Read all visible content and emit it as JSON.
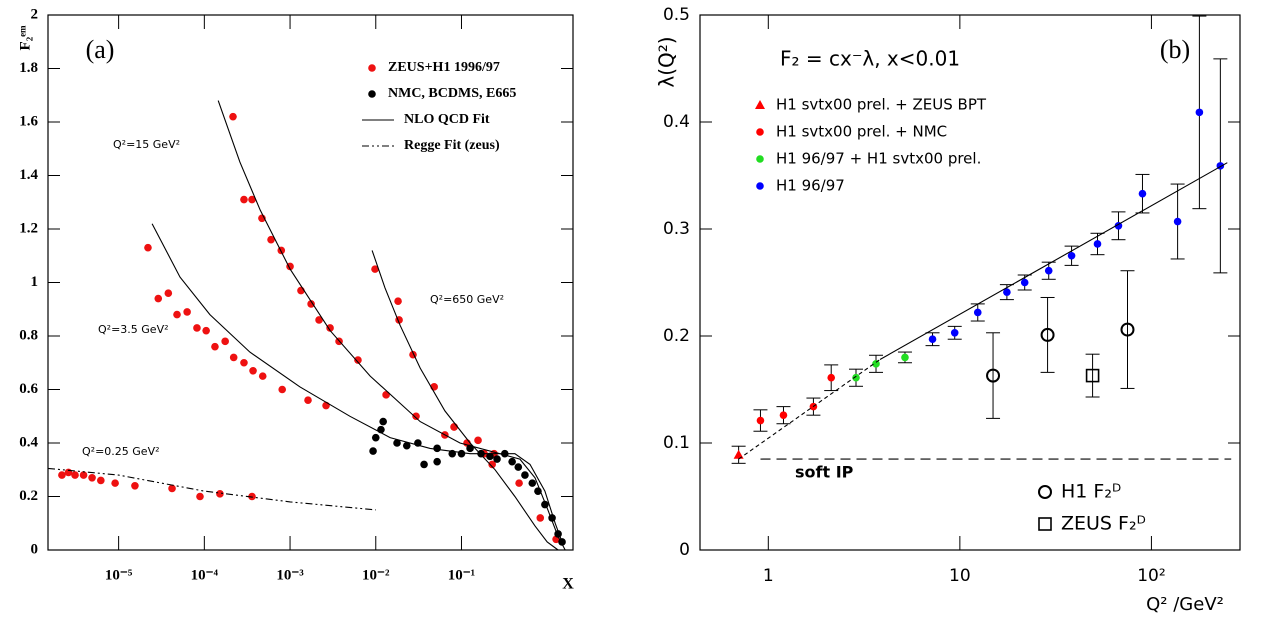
{
  "chart_data": [
    {
      "type": "scatter",
      "title": "(a)",
      "x_label": "X",
      "y_label": "F₂ᵉᵐ",
      "xscale": "log",
      "xlim": [
        1.5e-06,
        2
      ],
      "ylim": [
        0,
        2
      ],
      "xticks": [
        {
          "value": 1e-05,
          "label": "10⁻⁵"
        },
        {
          "value": 0.0001,
          "label": "10⁻⁴"
        },
        {
          "value": 0.001,
          "label": "10⁻³"
        },
        {
          "value": 0.01,
          "label": "10⁻²"
        },
        {
          "value": 0.1,
          "label": "10⁻¹"
        }
      ],
      "yticks": [
        0,
        0.2,
        0.4,
        0.6,
        0.8,
        1,
        1.2,
        1.4,
        1.6,
        1.8,
        2
      ],
      "annotations": [
        "Q²=15 GeV²",
        "Q²=3.5 GeV²",
        "Q²=650 GeV²",
        "Q²=0.25 GeV²"
      ],
      "series": [
        {
          "name": "ZEUS+H1 1996/97",
          "color": "#ee1111",
          "marker": "circle",
          "x": [
            0.000216,
            0.00029,
            0.00036,
            0.00047,
            0.0006,
            0.00079,
            0.001,
            0.00134,
            0.00176,
            0.00218,
            0.00293,
            0.00373,
            0.0062,
            0.0132,
            0.0295,
            0.064,
            0.082,
            0.156,
            0.24,
            2.2e-05,
            2.9e-05,
            3.8e-05,
            4.8e-05,
            6.3e-05,
            8.2e-05,
            0.000105,
            0.000133,
            0.000175,
            0.00022,
            0.00029,
            0.00037,
            0.00048,
            0.00081,
            0.00162,
            0.00263,
            0.0098,
            0.0182,
            0.0187,
            0.0272,
            0.048,
            0.082,
            0.116,
            0.184,
            0.228,
            0.47,
            0.83,
            1.27,
            2.18e-06,
            2.6e-06,
            3.1e-06,
            3.9e-06,
            4.9e-06,
            6.2e-06,
            9.1e-06,
            1.55e-05,
            4.2e-05,
            8.9e-05,
            0.000152,
            0.00036
          ],
          "values": [
            1.62,
            1.31,
            1.31,
            1.24,
            1.16,
            1.12,
            1.06,
            0.97,
            0.92,
            0.86,
            0.83,
            0.78,
            0.71,
            0.58,
            0.5,
            0.43,
            0.46,
            0.41,
            0.36,
            1.13,
            0.94,
            0.96,
            0.88,
            0.89,
            0.83,
            0.82,
            0.76,
            0.78,
            0.72,
            0.7,
            0.67,
            0.65,
            0.6,
            0.56,
            0.54,
            1.05,
            0.93,
            0.86,
            0.73,
            0.61,
            0.46,
            0.4,
            0.36,
            0.32,
            0.25,
            0.12,
            0.04,
            0.28,
            0.29,
            0.28,
            0.28,
            0.27,
            0.26,
            0.25,
            0.24,
            0.23,
            0.2,
            0.21,
            0.2
          ]
        },
        {
          "name": "NMC, BCDMS, E665",
          "color": "#000000",
          "marker": "circle",
          "x": [
            0.0093,
            0.01,
            0.0115,
            0.0122,
            0.0177,
            0.023,
            0.031,
            0.0366,
            0.052,
            0.052,
            0.078,
            0.1,
            0.126,
            0.169,
            0.215,
            0.26,
            0.32,
            0.39,
            0.46,
            0.55,
            0.67,
            0.78,
            0.94,
            1.14,
            1.34,
            1.49
          ],
          "values": [
            0.37,
            0.42,
            0.45,
            0.48,
            0.4,
            0.39,
            0.4,
            0.32,
            0.38,
            0.33,
            0.36,
            0.36,
            0.38,
            0.36,
            0.35,
            0.34,
            0.36,
            0.33,
            0.31,
            0.28,
            0.25,
            0.22,
            0.17,
            0.12,
            0.06,
            0.03
          ]
        },
        {
          "name": "NLO QCD Fit",
          "color": "#000000",
          "marker": "line",
          "x": [
            0.000145,
            0.00026,
            0.00045,
            0.001,
            0.00293,
            0.0086,
            0.033,
            0.096,
            0.28,
            0.48,
            0.72,
            1.02,
            1.34,
            1.62,
            null,
            2.46e-05,
            5.2e-05,
            0.000116,
            0.00034,
            0.0013,
            0.005,
            0.0147,
            0.043,
            0.126,
            0.28,
            0.42,
            0.63,
            0.94,
            1.24,
            1.53,
            null,
            0.00906,
            0.0128,
            0.0192,
            0.033,
            0.064,
            0.126,
            0.247,
            0.42,
            0.72,
            1.0,
            1.34
          ],
          "values": [
            1.68,
            1.45,
            1.27,
            1.05,
            0.82,
            0.65,
            0.48,
            0.4,
            0.36,
            0.34,
            0.27,
            0.15,
            0.05,
            0,
            null,
            1.22,
            1.02,
            0.88,
            0.74,
            0.61,
            0.5,
            0.42,
            0.38,
            0.36,
            0.36,
            0.36,
            0.32,
            0.22,
            0.1,
            0.02,
            null,
            1.12,
            0.98,
            0.84,
            0.68,
            0.52,
            0.4,
            0.3,
            0.2,
            0.09,
            0.03,
            0
          ]
        },
        {
          "name": "Regge Fit (zeus)",
          "color": "#000000",
          "marker": "line",
          "dash": "7,3,2,3,2,3",
          "x": [
            1.5e-06,
            1e-05,
            0.0001,
            0.001,
            0.01
          ],
          "values": [
            0.305,
            0.28,
            0.22,
            0.18,
            0.15
          ]
        }
      ]
    },
    {
      "type": "scatter",
      "title": "(b)",
      "x_label": "Q² /GeV²",
      "y_label": "λ(Q²)",
      "xscale": "log",
      "xlim": [
        0.44,
        290
      ],
      "ylim": [
        0,
        0.5
      ],
      "xticks": [
        1,
        10,
        {
          "value": 100,
          "label": "10²"
        }
      ],
      "yticks": [
        0,
        0.1,
        0.2,
        0.3,
        0.4,
        0.5
      ],
      "annotations": [
        "F₂ = cx⁻λ,  x<0.01",
        "soft IP"
      ],
      "series": [
        {
          "name": "H1 svtx00 prel. + ZEUS BPT",
          "color": "#ff0000",
          "marker": "triangle",
          "x": [
            0.7
          ],
          "values": [
            0.089
          ],
          "errors": [
            0.008
          ]
        },
        {
          "name": "H1 svtx00 prel. + NMC",
          "color": "#ff0000",
          "marker": "circle",
          "x": [
            0.91,
            1.2,
            1.72,
            2.13
          ],
          "values": [
            0.121,
            0.126,
            0.134,
            0.161
          ],
          "errors": [
            0.01,
            0.008,
            0.008,
            0.012
          ]
        },
        {
          "name": "H1 96/97 + H1 svtx00 prel.",
          "color": "#22dd22",
          "marker": "circle",
          "x": [
            2.87,
            3.65,
            5.17
          ],
          "values": [
            0.161,
            0.174,
            0.18
          ],
          "errors": [
            0.008,
            0.008,
            0.005
          ]
        },
        {
          "name": "H1 96/97",
          "color": "#0000ff",
          "marker": "circle",
          "x": [
            7.2,
            9.4,
            12.4,
            17.6,
            21.8,
            29.1,
            38.3,
            52.3,
            67.3,
            89.8,
            137,
            178,
            229
          ],
          "values": [
            0.197,
            0.203,
            0.222,
            0.241,
            0.25,
            0.261,
            0.275,
            0.286,
            0.303,
            0.333,
            0.307,
            0.409,
            0.359
          ],
          "errors": [
            0.006,
            0.006,
            0.008,
            0.007,
            0.007,
            0.008,
            0.009,
            0.01,
            0.013,
            0.018,
            0.035,
            0.09,
            0.1
          ]
        },
        {
          "name": "H1 F₂ᴰ",
          "color": "#000000",
          "marker": "open-circle",
          "x": [
            14.9,
            28.7,
            75
          ],
          "values": [
            0.163,
            0.201,
            0.206
          ],
          "errors": [
            0.04,
            0.035,
            0.055
          ]
        },
        {
          "name": "ZEUS F₂ᴰ",
          "color": "#000000",
          "marker": "open-square",
          "x": [
            49.3
          ],
          "values": [
            0.163
          ],
          "errors": [
            0.02
          ]
        },
        {
          "color": "#000000",
          "marker": "line",
          "dash": "4,3",
          "x": [
            0.7,
            3.83
          ],
          "values": [
            0.085,
            0.178
          ]
        },
        {
          "color": "#000000",
          "marker": "line",
          "x": [
            3.83,
            249
          ],
          "values": [
            0.178,
            0.362
          ]
        },
        {
          "color": "#000000",
          "marker": "line",
          "dash": "10,6",
          "x": [
            0.91,
            261
          ],
          "values": [
            0.085,
            0.085
          ]
        }
      ]
    }
  ]
}
